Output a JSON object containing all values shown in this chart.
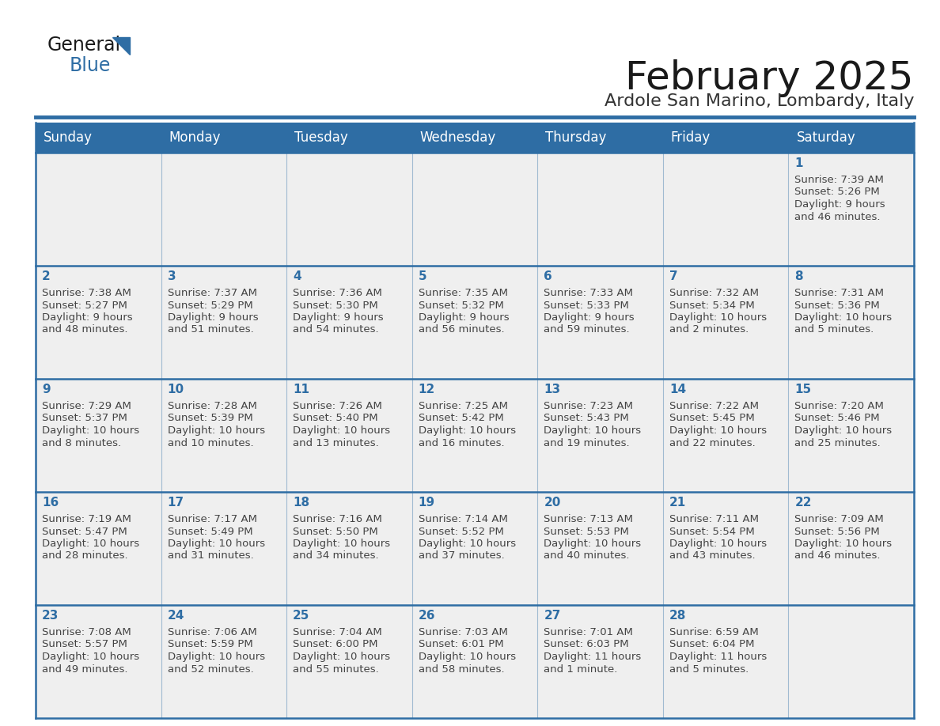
{
  "title": "February 2025",
  "subtitle": "Ardole San Marino, Lombardy, Italy",
  "header_bg_color": "#2E6DA4",
  "header_text_color": "#FFFFFF",
  "border_color": "#2E6DA4",
  "cell_bg_color": "#EFEFEF",
  "day_headers": [
    "Sunday",
    "Monday",
    "Tuesday",
    "Wednesday",
    "Thursday",
    "Friday",
    "Saturday"
  ],
  "title_color": "#1a1a1a",
  "subtitle_color": "#333333",
  "day_number_color": "#2E6DA4",
  "cell_text_color": "#444444",
  "logo_black": "#1a1a1a",
  "logo_blue": "#2E6DA4",
  "calendar": [
    [
      null,
      null,
      null,
      null,
      null,
      null,
      {
        "day": 1,
        "sunrise": "7:39 AM",
        "sunset": "5:26 PM",
        "daylight": "9 hours and 46 minutes."
      }
    ],
    [
      {
        "day": 2,
        "sunrise": "7:38 AM",
        "sunset": "5:27 PM",
        "daylight": "9 hours and 48 minutes."
      },
      {
        "day": 3,
        "sunrise": "7:37 AM",
        "sunset": "5:29 PM",
        "daylight": "9 hours and 51 minutes."
      },
      {
        "day": 4,
        "sunrise": "7:36 AM",
        "sunset": "5:30 PM",
        "daylight": "9 hours and 54 minutes."
      },
      {
        "day": 5,
        "sunrise": "7:35 AM",
        "sunset": "5:32 PM",
        "daylight": "9 hours and 56 minutes."
      },
      {
        "day": 6,
        "sunrise": "7:33 AM",
        "sunset": "5:33 PM",
        "daylight": "9 hours and 59 minutes."
      },
      {
        "day": 7,
        "sunrise": "7:32 AM",
        "sunset": "5:34 PM",
        "daylight": "10 hours and 2 minutes."
      },
      {
        "day": 8,
        "sunrise": "7:31 AM",
        "sunset": "5:36 PM",
        "daylight": "10 hours and 5 minutes."
      }
    ],
    [
      {
        "day": 9,
        "sunrise": "7:29 AM",
        "sunset": "5:37 PM",
        "daylight": "10 hours and 8 minutes."
      },
      {
        "day": 10,
        "sunrise": "7:28 AM",
        "sunset": "5:39 PM",
        "daylight": "10 hours and 10 minutes."
      },
      {
        "day": 11,
        "sunrise": "7:26 AM",
        "sunset": "5:40 PM",
        "daylight": "10 hours and 13 minutes."
      },
      {
        "day": 12,
        "sunrise": "7:25 AM",
        "sunset": "5:42 PM",
        "daylight": "10 hours and 16 minutes."
      },
      {
        "day": 13,
        "sunrise": "7:23 AM",
        "sunset": "5:43 PM",
        "daylight": "10 hours and 19 minutes."
      },
      {
        "day": 14,
        "sunrise": "7:22 AM",
        "sunset": "5:45 PM",
        "daylight": "10 hours and 22 minutes."
      },
      {
        "day": 15,
        "sunrise": "7:20 AM",
        "sunset": "5:46 PM",
        "daylight": "10 hours and 25 minutes."
      }
    ],
    [
      {
        "day": 16,
        "sunrise": "7:19 AM",
        "sunset": "5:47 PM",
        "daylight": "10 hours and 28 minutes."
      },
      {
        "day": 17,
        "sunrise": "7:17 AM",
        "sunset": "5:49 PM",
        "daylight": "10 hours and 31 minutes."
      },
      {
        "day": 18,
        "sunrise": "7:16 AM",
        "sunset": "5:50 PM",
        "daylight": "10 hours and 34 minutes."
      },
      {
        "day": 19,
        "sunrise": "7:14 AM",
        "sunset": "5:52 PM",
        "daylight": "10 hours and 37 minutes."
      },
      {
        "day": 20,
        "sunrise": "7:13 AM",
        "sunset": "5:53 PM",
        "daylight": "10 hours and 40 minutes."
      },
      {
        "day": 21,
        "sunrise": "7:11 AM",
        "sunset": "5:54 PM",
        "daylight": "10 hours and 43 minutes."
      },
      {
        "day": 22,
        "sunrise": "7:09 AM",
        "sunset": "5:56 PM",
        "daylight": "10 hours and 46 minutes."
      }
    ],
    [
      {
        "day": 23,
        "sunrise": "7:08 AM",
        "sunset": "5:57 PM",
        "daylight": "10 hours and 49 minutes."
      },
      {
        "day": 24,
        "sunrise": "7:06 AM",
        "sunset": "5:59 PM",
        "daylight": "10 hours and 52 minutes."
      },
      {
        "day": 25,
        "sunrise": "7:04 AM",
        "sunset": "6:00 PM",
        "daylight": "10 hours and 55 minutes."
      },
      {
        "day": 26,
        "sunrise": "7:03 AM",
        "sunset": "6:01 PM",
        "daylight": "10 hours and 58 minutes."
      },
      {
        "day": 27,
        "sunrise": "7:01 AM",
        "sunset": "6:03 PM",
        "daylight": "11 hours and 1 minute."
      },
      {
        "day": 28,
        "sunrise": "6:59 AM",
        "sunset": "6:04 PM",
        "daylight": "11 hours and 5 minutes."
      },
      null
    ]
  ]
}
